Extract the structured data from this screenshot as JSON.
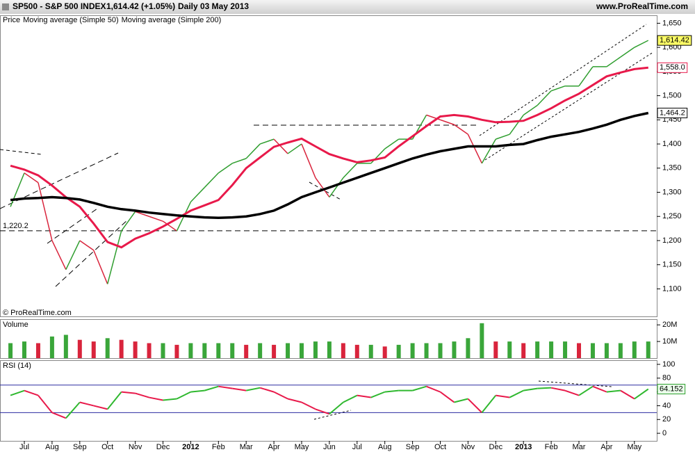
{
  "header": {
    "symbol": "SP500 - S&P 500 INDEX",
    "quote": "1,614.42 (+1.05%)",
    "period": "Daily",
    "date": "03 May 2013",
    "site": "www.ProRealTime.com"
  },
  "chart_data": [
    {
      "type": "line",
      "credit": "© ProRealTime.com",
      "categories": [
        null,
        "Jul",
        null,
        "Aug",
        null,
        "Sep",
        null,
        "Oct",
        null,
        "Nov",
        null,
        "Dec",
        null,
        "2012",
        null,
        "Feb",
        null,
        "Mar",
        null,
        "Apr",
        null,
        "May",
        null,
        "Jun",
        null,
        "Jul",
        null,
        "Aug",
        null,
        "Sep",
        null,
        "Oct",
        null,
        "Nov",
        null,
        "Dec",
        null,
        "2013",
        null,
        "Feb",
        null,
        "Mar",
        null,
        "Apr",
        null,
        "May",
        null
      ],
      "series": [
        {
          "name": "Price",
          "up_color": "#2f9e2f",
          "down_color": "#d9243c",
          "last_label": "1,614.42",
          "values": [
            1270,
            1340,
            1320,
            1200,
            1140,
            1200,
            1180,
            1110,
            1220,
            1260,
            1250,
            1240,
            1220,
            1280,
            1310,
            1340,
            1360,
            1370,
            1400,
            1410,
            1380,
            1400,
            1330,
            1290,
            1330,
            1360,
            1360,
            1390,
            1410,
            1410,
            1460,
            1450,
            1440,
            1420,
            1360,
            1410,
            1420,
            1460,
            1480,
            1510,
            1520,
            1520,
            1560,
            1560,
            1580,
            1600,
            1614.42
          ]
        },
        {
          "name": "Moving average (Simple 50)",
          "color": "#e8194a",
          "last_label": "1,558.0",
          "values": [
            1355,
            1347,
            1335,
            1314,
            1290,
            1270,
            1235,
            1197,
            1186,
            1204,
            1215,
            1229,
            1245,
            1262,
            1273,
            1284,
            1315,
            1350,
            1372,
            1394,
            1403,
            1411,
            1395,
            1379,
            1370,
            1362,
            1366,
            1372,
            1395,
            1416,
            1437,
            1457,
            1460,
            1457,
            1450,
            1445,
            1446,
            1448,
            1460,
            1474,
            1490,
            1504,
            1522,
            1540,
            1548,
            1555,
            1558.0
          ]
        },
        {
          "name": "Moving average (Simple 200)",
          "color": "#000000",
          "last_label": "1,464.2",
          "values": [
            1284,
            1287,
            1288,
            1290,
            1288,
            1285,
            1278,
            1270,
            1265,
            1262,
            1258,
            1255,
            1252,
            1250,
            1248,
            1247,
            1248,
            1250,
            1255,
            1262,
            1275,
            1290,
            1300,
            1310,
            1320,
            1330,
            1340,
            1350,
            1360,
            1370,
            1378,
            1385,
            1390,
            1395,
            1395,
            1395,
            1398,
            1400,
            1408,
            1415,
            1420,
            1425,
            1432,
            1440,
            1450,
            1458,
            1464.2
          ]
        }
      ],
      "hline": {
        "value": 1220.2,
        "label": "1,220.2"
      },
      "ylim": [
        1043,
        1665
      ],
      "yticks": [
        {
          "value": 1100,
          "label": "1,100"
        },
        {
          "value": 1150,
          "label": "1,150"
        },
        {
          "value": 1200,
          "label": "1,200"
        },
        {
          "value": 1250,
          "label": "1,250"
        },
        {
          "value": 1300,
          "label": "1,300"
        },
        {
          "value": 1350,
          "label": "1,350"
        },
        {
          "value": 1400,
          "label": "1,400"
        },
        {
          "value": 1450,
          "label": "1,450"
        },
        {
          "value": 1500,
          "label": "1,500"
        },
        {
          "value": 1550,
          "label": "1,550"
        },
        {
          "value": 1600,
          "label": "1,600"
        },
        {
          "value": 1650,
          "label": "1,650"
        }
      ]
    },
    {
      "type": "bar",
      "title": "Volume",
      "color": "#3aa63a",
      "values": [
        9,
        10,
        9,
        13,
        14,
        11,
        10,
        12,
        11,
        10,
        9,
        9,
        8,
        9,
        9,
        9,
        9,
        8,
        9,
        8,
        9,
        9,
        10,
        10,
        9,
        8,
        8,
        7,
        8,
        9,
        9,
        9,
        10,
        12,
        21,
        10,
        10,
        9,
        10,
        10,
        10,
        9,
        9,
        9,
        9,
        10,
        10
      ],
      "ylim": [
        0,
        23
      ],
      "yticks": [
        {
          "value": 10,
          "label": "10M"
        },
        {
          "value": 20,
          "label": "20M"
        }
      ]
    },
    {
      "type": "line",
      "title": "RSI (14)",
      "up_color": "#2fb82f",
      "down_color": "#e8194a",
      "last_label": "64.152",
      "levels": [
        30,
        70
      ],
      "values": [
        55,
        62,
        55,
        30,
        22,
        45,
        40,
        35,
        60,
        58,
        52,
        48,
        50,
        60,
        62,
        68,
        65,
        62,
        66,
        60,
        50,
        45,
        35,
        28,
        45,
        55,
        52,
        60,
        62,
        62,
        68,
        60,
        45,
        50,
        30,
        55,
        52,
        62,
        65,
        66,
        62,
        55,
        68,
        60,
        62,
        50,
        64.152
      ],
      "ylim": [
        -11,
        104
      ],
      "yticks": [
        0,
        20,
        40,
        60,
        80,
        100
      ]
    }
  ]
}
